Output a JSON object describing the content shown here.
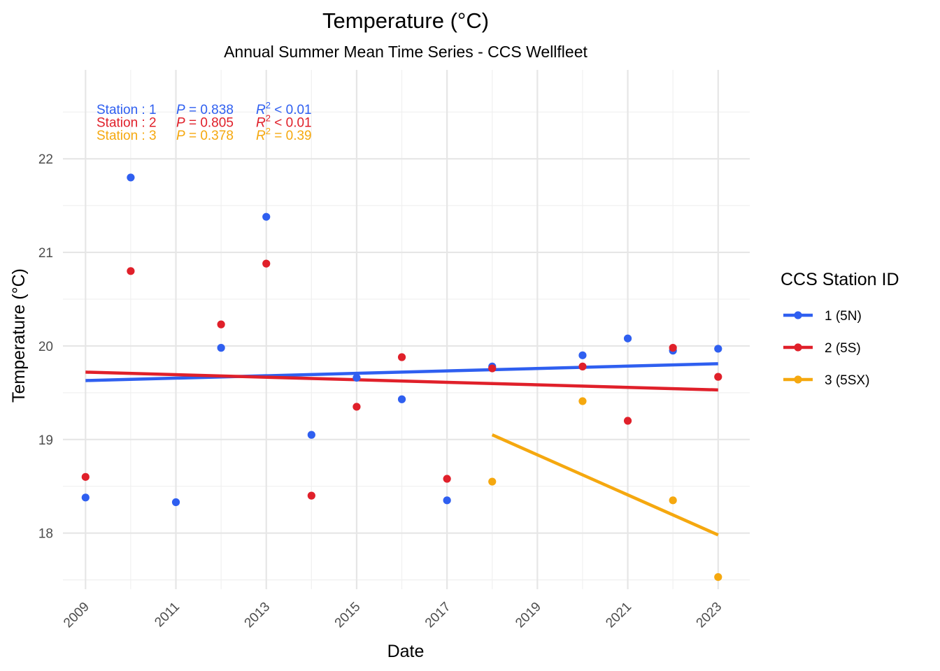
{
  "chart_data": {
    "type": "scatter",
    "title": "Temperature (°C)",
    "subtitle": "Annual Summer Mean Time Series - CCS Wellfleet",
    "xlabel": "Date",
    "ylabel": "Temperature (°C)",
    "xlim": [
      2008.5,
      2023.7
    ],
    "ylim": [
      17.4,
      22.95
    ],
    "x_ticks": [
      "2009",
      "2011",
      "2013",
      "2015",
      "2017",
      "2019",
      "2021",
      "2023"
    ],
    "y_ticks": [
      "18",
      "19",
      "20",
      "21",
      "22"
    ],
    "grid": true,
    "legend": {
      "title": "CCS Station ID",
      "position": "right"
    },
    "series": [
      {
        "name": "1 (5N)",
        "color": "#2f5ff0",
        "points": [
          {
            "x": 2009,
            "y": 18.38
          },
          {
            "x": 2010,
            "y": 21.8
          },
          {
            "x": 2011,
            "y": 18.33
          },
          {
            "x": 2012,
            "y": 19.98
          },
          {
            "x": 2013,
            "y": 21.38
          },
          {
            "x": 2014,
            "y": 19.05
          },
          {
            "x": 2015,
            "y": 19.66
          },
          {
            "x": 2016,
            "y": 19.43
          },
          {
            "x": 2017,
            "y": 18.35
          },
          {
            "x": 2018,
            "y": 19.78
          },
          {
            "x": 2020,
            "y": 19.9
          },
          {
            "x": 2021,
            "y": 20.08
          },
          {
            "x": 2022,
            "y": 19.95
          },
          {
            "x": 2023,
            "y": 19.97
          }
        ],
        "trend": {
          "x": [
            2009,
            2023
          ],
          "y": [
            19.63,
            19.81
          ]
        },
        "stats": {
          "station": "Station : 1",
          "p": "P = 0.838",
          "r2": "< 0.01"
        }
      },
      {
        "name": "2 (5S)",
        "color": "#e0202a",
        "points": [
          {
            "x": 2009,
            "y": 18.6
          },
          {
            "x": 2010,
            "y": 20.8
          },
          {
            "x": 2012,
            "y": 20.23
          },
          {
            "x": 2013,
            "y": 20.88
          },
          {
            "x": 2014,
            "y": 18.4
          },
          {
            "x": 2015,
            "y": 19.35
          },
          {
            "x": 2016,
            "y": 19.88
          },
          {
            "x": 2017,
            "y": 18.58
          },
          {
            "x": 2018,
            "y": 19.76
          },
          {
            "x": 2020,
            "y": 19.78
          },
          {
            "x": 2021,
            "y": 19.2
          },
          {
            "x": 2022,
            "y": 19.98
          },
          {
            "x": 2023,
            "y": 19.67
          }
        ],
        "trend": {
          "x": [
            2009,
            2023
          ],
          "y": [
            19.72,
            19.53
          ]
        },
        "stats": {
          "station": "Station : 2",
          "p": "P = 0.805",
          "r2": "< 0.01"
        }
      },
      {
        "name": "3 (5SX)",
        "color": "#f5a80f",
        "points": [
          {
            "x": 2018,
            "y": 18.55
          },
          {
            "x": 2020,
            "y": 19.41
          },
          {
            "x": 2022,
            "y": 18.35
          },
          {
            "x": 2023,
            "y": 17.53
          }
        ],
        "trend": {
          "x": [
            2018,
            2023
          ],
          "y": [
            19.05,
            17.98
          ]
        },
        "stats": {
          "station": "Station : 3",
          "p": "P = 0.378",
          "r2": "= 0.39"
        }
      }
    ]
  }
}
